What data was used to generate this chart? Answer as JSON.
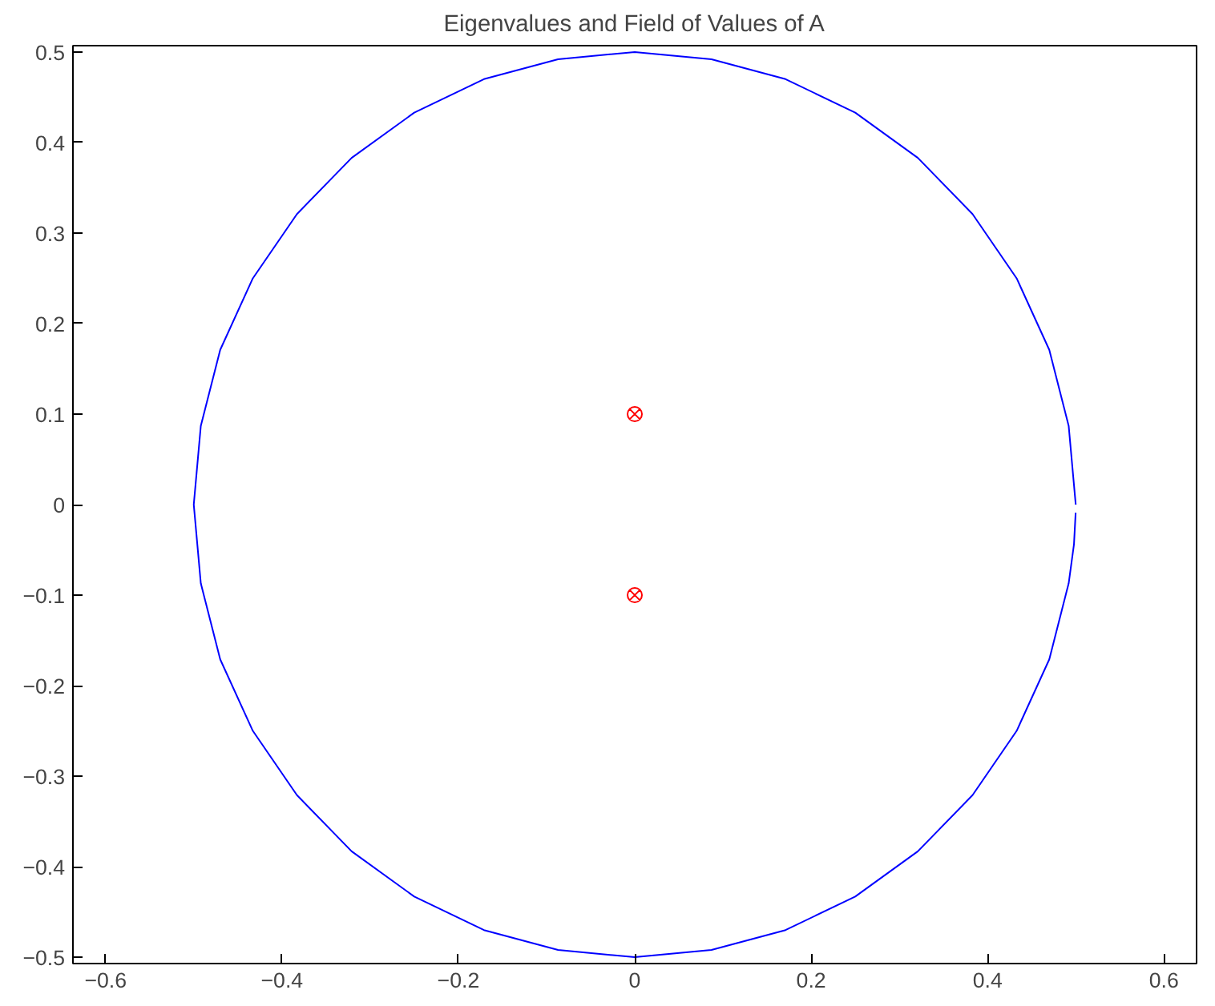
{
  "chart_data": {
    "type": "line",
    "title": "Eigenvalues and Field of Values of A",
    "xlim": [
      -0.637,
      0.637
    ],
    "ylim": [
      -0.507,
      0.507
    ],
    "xticks": [
      -0.6,
      -0.4,
      -0.2,
      0,
      0.2,
      0.4,
      0.6
    ],
    "yticks": [
      -0.5,
      -0.4,
      -0.3,
      -0.2,
      -0.1,
      0,
      0.1,
      0.2,
      0.3,
      0.4,
      0.5
    ],
    "grid": false,
    "series": [
      {
        "color": "#0000ff",
        "marker": "none",
        "line_style": "solid",
        "x": [
          0.5,
          0.492,
          0.47,
          0.433,
          0.383,
          0.321,
          0.25,
          0.171,
          0.087,
          0,
          -0.087,
          -0.171,
          -0.25,
          -0.321,
          -0.383,
          -0.433,
          -0.47,
          -0.492,
          -0.5,
          -0.492,
          -0.47,
          -0.433,
          -0.383,
          -0.321,
          -0.25,
          -0.171,
          -0.087,
          0,
          0.087,
          0.171,
          0.25,
          0.321,
          0.383,
          0.433,
          0.47,
          0.492,
          0.498,
          0.4999
        ],
        "values": [
          0,
          0.087,
          0.171,
          0.25,
          0.321,
          0.383,
          0.433,
          0.47,
          0.492,
          0.5,
          0.492,
          0.47,
          0.433,
          0.383,
          0.321,
          0.25,
          0.171,
          0.087,
          0,
          -0.087,
          -0.171,
          -0.25,
          -0.321,
          -0.383,
          -0.433,
          -0.47,
          -0.492,
          -0.5,
          -0.492,
          -0.47,
          -0.433,
          -0.383,
          -0.321,
          -0.25,
          -0.171,
          -0.087,
          -0.044,
          -0.009
        ]
      },
      {
        "type": "scatter",
        "color": "#ff0000",
        "x": [
          0,
          0
        ],
        "values": [
          0.1,
          -0.1
        ]
      }
    ]
  }
}
